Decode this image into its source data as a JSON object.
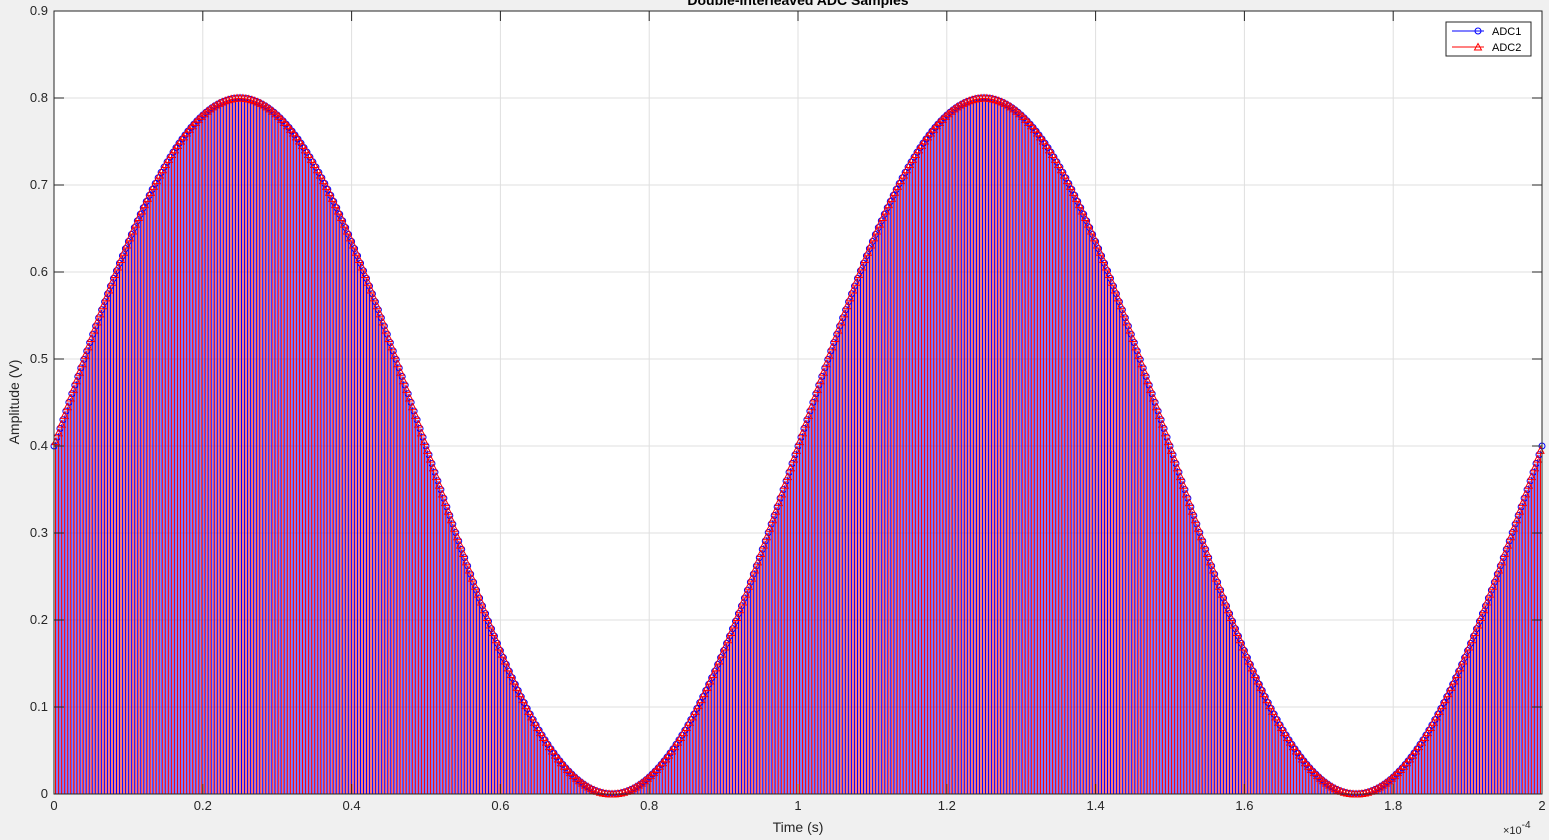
{
  "chart_data": {
    "type": "stem",
    "title": "Double-Interleaved ADC Samples",
    "xlabel": "Time (s)",
    "ylabel": "Amplitude (V)",
    "x_exponent_base": "×10",
    "x_exponent_power": "-4",
    "xlim": [
      0,
      2
    ],
    "ylim": [
      0,
      0.9
    ],
    "x_ticks": [
      0,
      0.2,
      0.4,
      0.6,
      0.8,
      1,
      1.2,
      1.4,
      1.6,
      1.8,
      2
    ],
    "x_tick_labels": [
      "0",
      "0.2",
      "0.4",
      "0.6",
      "0.8",
      "1",
      "1.2",
      "1.4",
      "1.6",
      "1.8",
      "2"
    ],
    "y_ticks": [
      0,
      0.1,
      0.2,
      0.3,
      0.4,
      0.5,
      0.6,
      0.7,
      0.8,
      0.9
    ],
    "y_tick_labels": [
      "0",
      "0.1",
      "0.2",
      "0.3",
      "0.4",
      "0.5",
      "0.6",
      "0.7",
      "0.8",
      "0.9"
    ],
    "grid": true,
    "legend_position": "top-right",
    "signal": {
      "form": "sine",
      "offset": 0.4,
      "amplitude": 0.4,
      "period": 1,
      "phase": 0,
      "x_start": 0,
      "x_end": 2
    },
    "series": [
      {
        "name": "ADC1",
        "color": "#0000ff",
        "marker": "circle",
        "x_start": 0,
        "x_step": 0.004,
        "count": 501
      },
      {
        "name": "ADC2",
        "color": "#ff0000",
        "marker": "triangle",
        "x_start": 0.002,
        "x_step": 0.004,
        "count": 500
      }
    ]
  }
}
